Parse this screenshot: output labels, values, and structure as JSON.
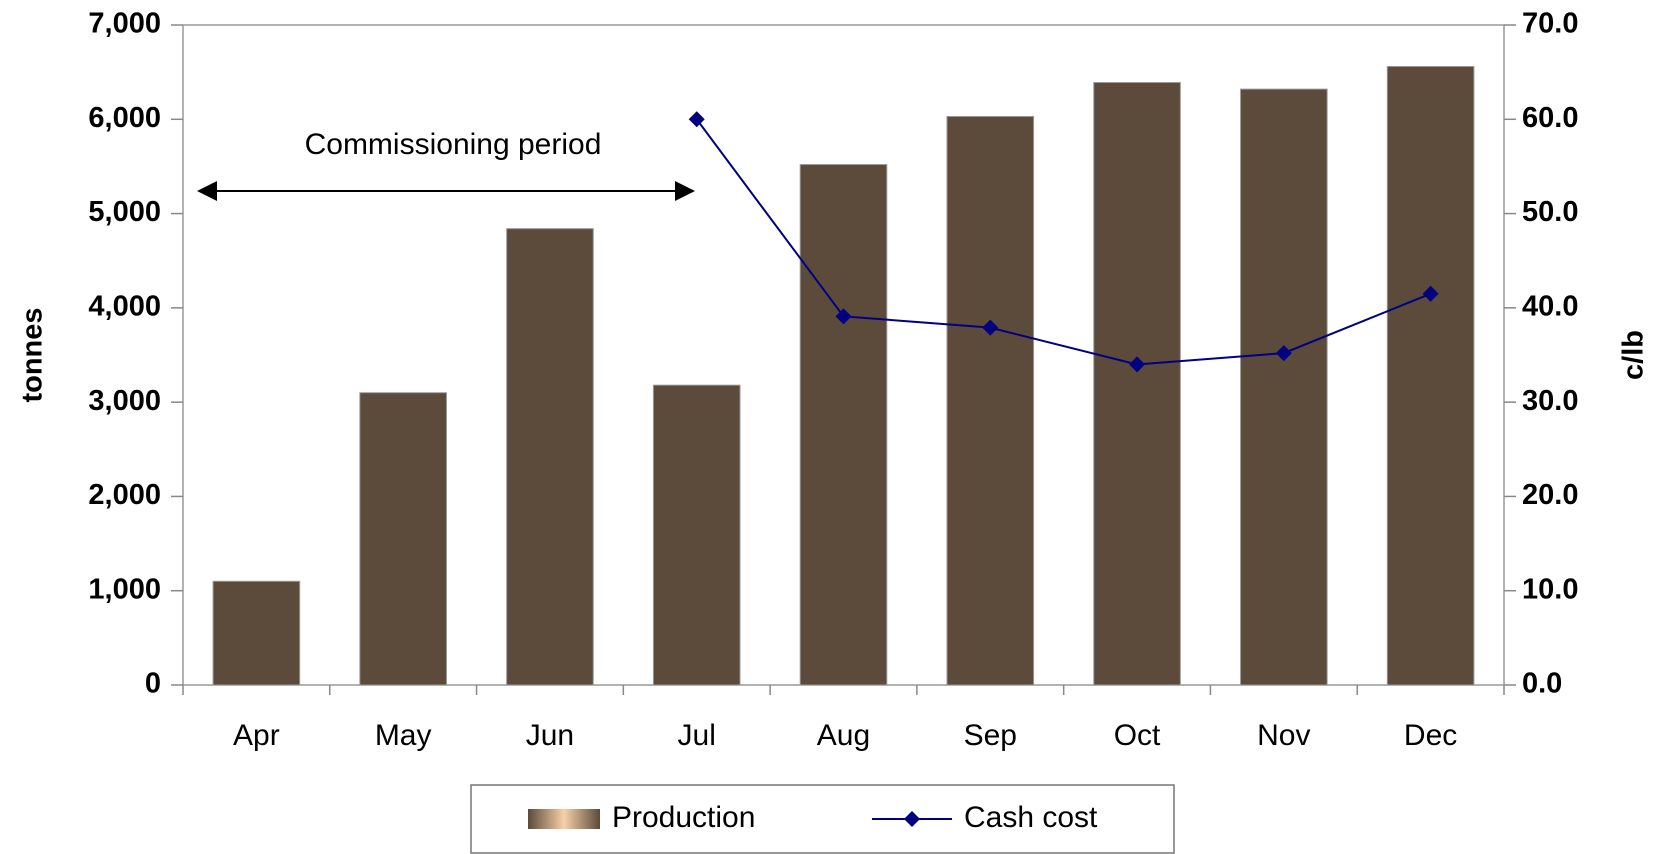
{
  "chart_data": {
    "type": "bar",
    "annotation": "Commissioning period",
    "y_label": "tonnes",
    "y2_label": "c/lb",
    "categories": [
      "Apr",
      "May",
      "Jun",
      "Jul",
      "Aug",
      "Sep",
      "Oct",
      "Nov",
      "Dec"
    ],
    "series": [
      {
        "name": "Production",
        "type": "bar",
        "color": "#5c4a3a",
        "values": [
          1100,
          3100,
          4840,
          3180,
          5520,
          6030,
          6390,
          6320,
          6560
        ]
      },
      {
        "name": "Cash cost",
        "type": "line",
        "axis": "y2",
        "color": "#000080",
        "values": [
          null,
          null,
          null,
          60.0,
          39.1,
          37.9,
          34.0,
          35.2,
          41.5
        ]
      }
    ],
    "ylim": [
      0,
      7000
    ],
    "yticks": [
      0,
      {
        "value": 1000,
        "label": "1,000"
      },
      {
        "value": 2000,
        "label": "2,000"
      },
      {
        "value": 3000,
        "label": "3,000"
      },
      {
        "value": 4000,
        "label": "4,000"
      },
      {
        "value": 5000,
        "label": "5,000"
      },
      {
        "value": 6000,
        "label": "6,000"
      },
      {
        "value": 7000,
        "label": "7,000"
      }
    ],
    "y2lim": [
      0,
      70
    ],
    "y2ticks": [
      {
        "value": 0,
        "label": "0.0"
      },
      {
        "value": 10,
        "label": "10.0"
      },
      {
        "value": 20,
        "label": "20.0"
      },
      {
        "value": 30,
        "label": "30.0"
      },
      {
        "value": 40,
        "label": "40.0"
      },
      {
        "value": 50,
        "label": "50.0"
      },
      {
        "value": 60,
        "label": "60.0"
      },
      {
        "value": 70,
        "label": "70.0"
      }
    ],
    "grid": false,
    "legend": "bottom"
  }
}
